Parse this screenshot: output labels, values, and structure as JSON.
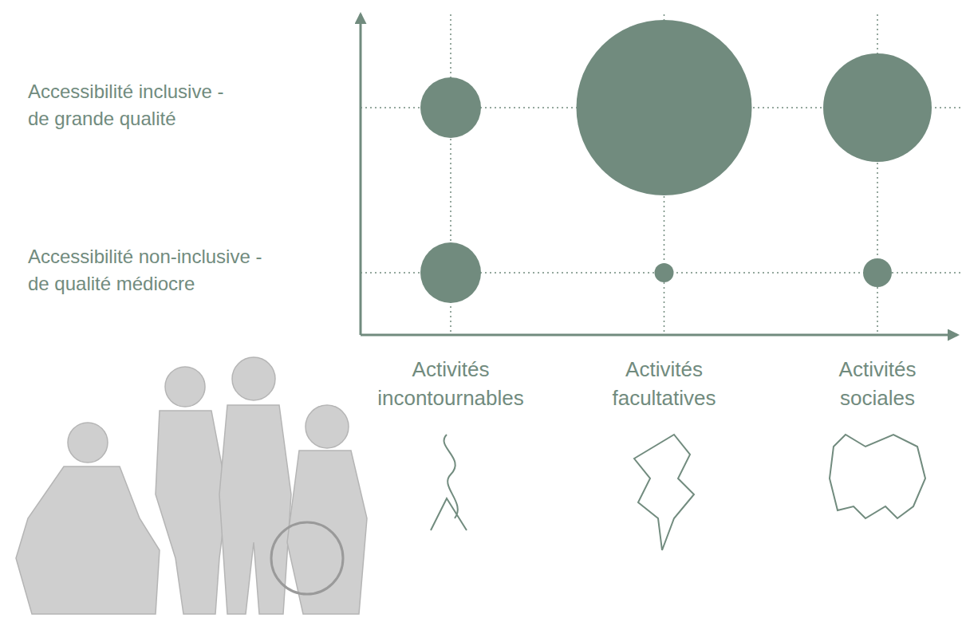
{
  "chart_data": {
    "type": "bubble",
    "categories": [
      "Activités incontournables",
      "Activités facultatives",
      "Activités sociales"
    ],
    "y_categories": [
      "Accessibilité non-inclusive - de qualité médiocre",
      "Accessibilité inclusive - de grande qualité"
    ],
    "sizes": [
      [
        38,
        12,
        18
      ],
      [
        38,
        110,
        68
      ]
    ],
    "color": "#718b7e",
    "grid": true,
    "tick_labels": true
  }
}
